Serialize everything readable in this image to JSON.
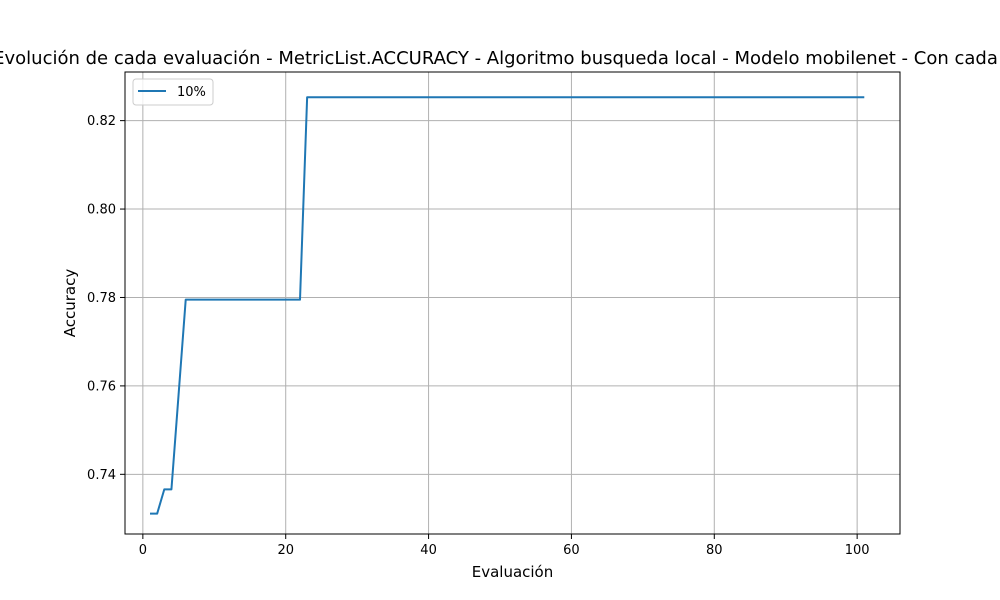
{
  "chart_data": {
    "type": "line",
    "title": "Evolución de cada evaluación - MetricList.ACCURACY - Algoritmo busqueda local - Modelo mobilenet - Con cada",
    "xlabel": "Evaluación",
    "ylabel": "Accuracy",
    "xlim": [
      -2.5,
      106
    ],
    "ylim": [
      0.7265,
      0.831
    ],
    "xticks": [
      0,
      20,
      40,
      60,
      80,
      100
    ],
    "yticks": [
      0.74,
      0.76,
      0.78,
      0.8,
      0.82
    ],
    "xtick_labels": [
      "0",
      "20",
      "40",
      "60",
      "80",
      "100"
    ],
    "ytick_labels": [
      "0.74",
      "0.76",
      "0.78",
      "0.80",
      "0.82"
    ],
    "grid": true,
    "legend_position": "top-left",
    "series": [
      {
        "name": "10%",
        "color": "#1f77b4",
        "x": [
          1,
          2,
          3,
          4,
          5,
          6,
          7,
          22,
          23,
          24,
          101
        ],
        "y": [
          0.7311,
          0.7311,
          0.7366,
          0.7366,
          0.758,
          0.7795,
          0.7795,
          0.7795,
          0.8253,
          0.8253,
          0.8253
        ]
      }
    ]
  }
}
